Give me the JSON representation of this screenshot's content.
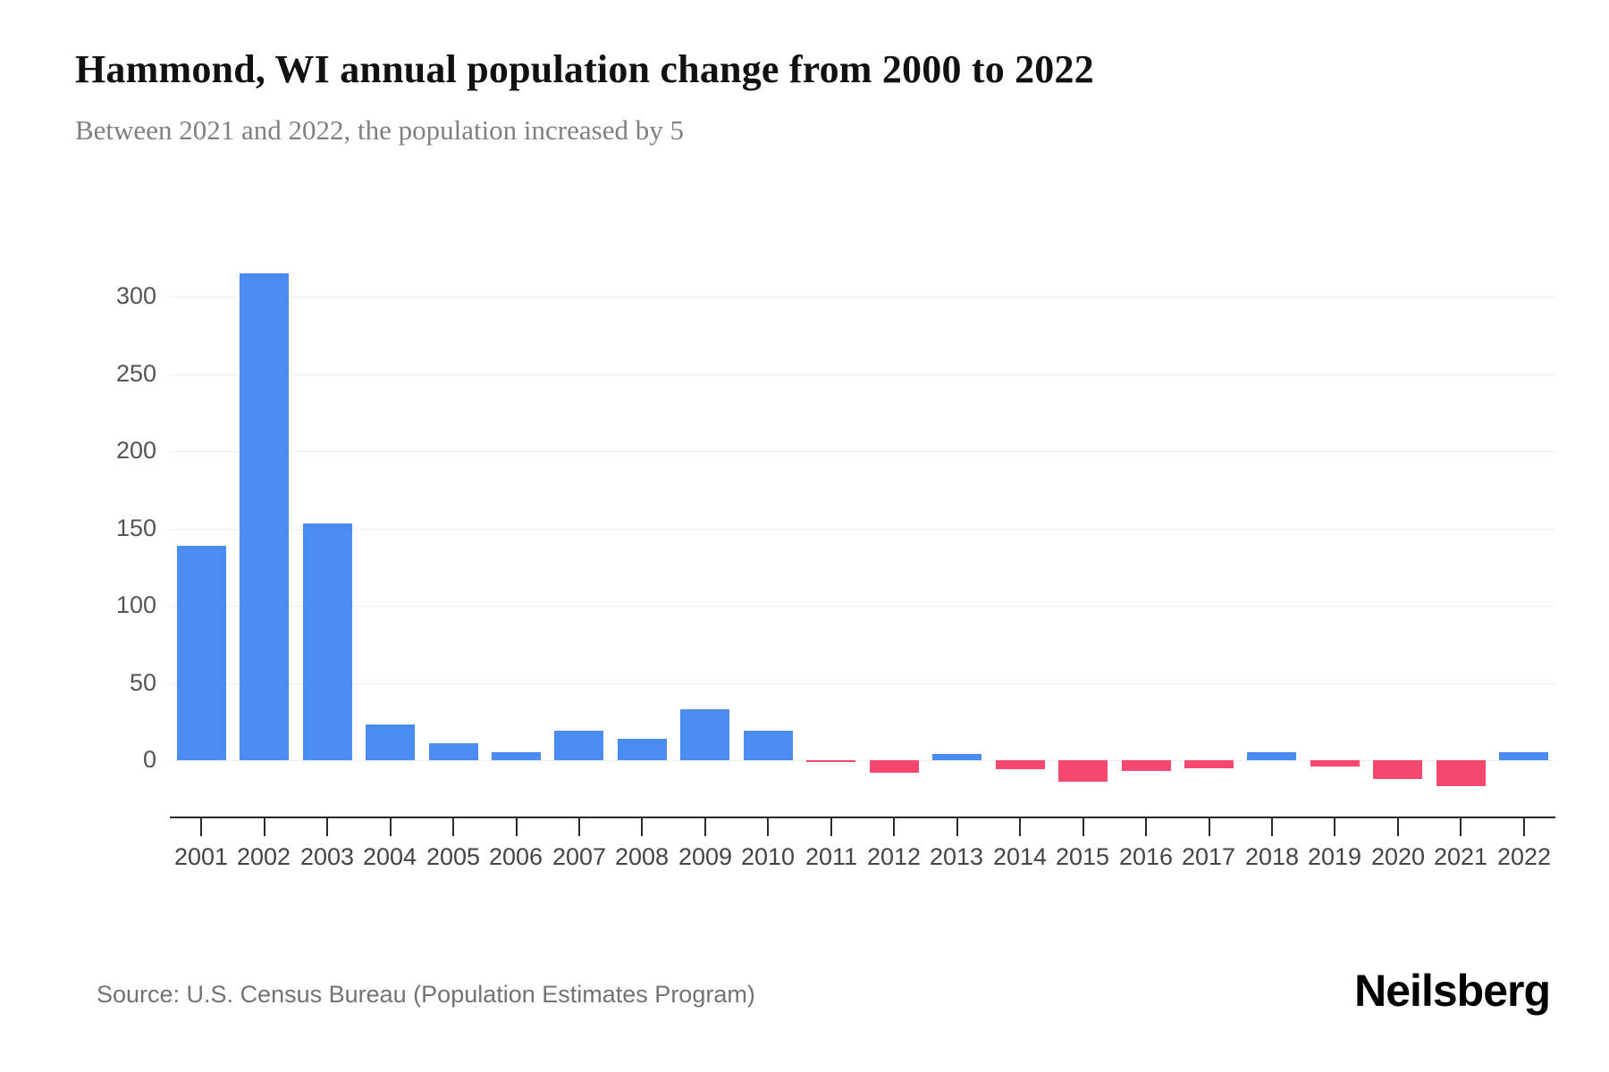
{
  "page": {
    "title": "Hammond, WI annual population change from 2000 to 2022",
    "subtitle": "Between 2021 and 2022, the population increased by 5",
    "source": "Source: U.S. Census Bureau (Population Estimates Program)",
    "brand": "Neilsberg"
  },
  "chart_data": {
    "type": "bar",
    "title": "Hammond, WI annual population change from 2000 to 2022",
    "subtitle": "Between 2021 and 2022, the population increased by 5",
    "categories": [
      "2001",
      "2002",
      "2003",
      "2004",
      "2005",
      "2006",
      "2007",
      "2008",
      "2009",
      "2010",
      "2011",
      "2012",
      "2013",
      "2014",
      "2015",
      "2016",
      "2017",
      "2018",
      "2019",
      "2020",
      "2021",
      "2022"
    ],
    "values": [
      139,
      315,
      153,
      23,
      11,
      5,
      19,
      14,
      33,
      19,
      -1,
      -8,
      4,
      -6,
      -14,
      -7,
      -5,
      5,
      -4,
      -12,
      -17,
      5
    ],
    "xlabel": "",
    "ylabel": "",
    "yticks": [
      0,
      50,
      100,
      150,
      200,
      250,
      300
    ],
    "ylim": [
      -25,
      325
    ],
    "grid": true,
    "legend": "none",
    "colors": {
      "positive": "#4a8cf1",
      "negative": "#f4486e"
    }
  }
}
